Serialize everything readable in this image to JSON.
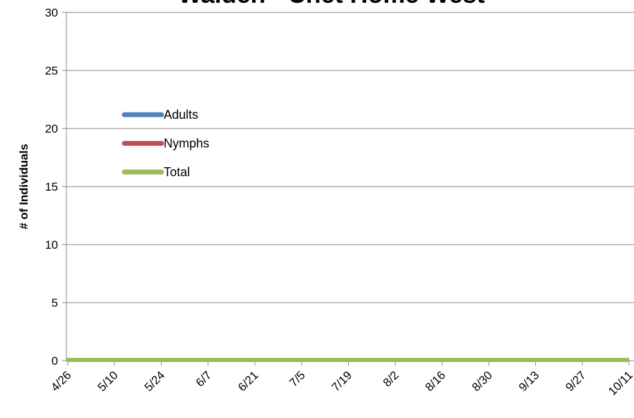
{
  "chart_data": {
    "type": "line",
    "title": "Walden - Cnet Home West",
    "xlabel": "",
    "ylabel": "# of Individuals",
    "categories": [
      "4/26",
      "5/10",
      "5/24",
      "6/7",
      "6/21",
      "7/5",
      "7/19",
      "8/2",
      "8/16",
      "8/30",
      "9/13",
      "9/27",
      "10/11"
    ],
    "ylim": [
      0,
      30
    ],
    "yticks": [
      0,
      5,
      10,
      15,
      20,
      25,
      30
    ],
    "grid": true,
    "legend": "left-upper-inside",
    "series": [
      {
        "name": "Adults",
        "color": "#4F81BD",
        "values": [
          0,
          0,
          0,
          0,
          0,
          0,
          0,
          0,
          0,
          0,
          0,
          0,
          0
        ]
      },
      {
        "name": "Nymphs",
        "color": "#C0504D",
        "values": [
          0,
          0,
          0,
          0,
          0,
          0,
          0,
          0,
          0,
          0,
          0,
          0,
          0
        ]
      },
      {
        "name": "Total",
        "color": "#9BBB59",
        "values": [
          0,
          0,
          0,
          0,
          0,
          0,
          0,
          0,
          0,
          0,
          0,
          0,
          0
        ]
      }
    ]
  }
}
